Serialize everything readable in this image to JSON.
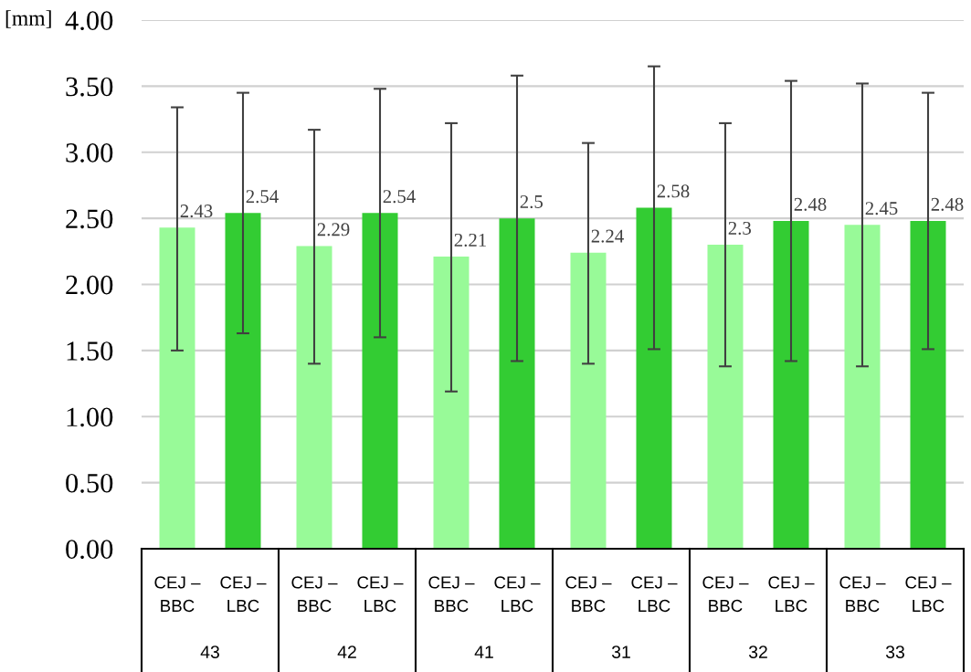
{
  "chart_data": {
    "type": "bar",
    "ylabel": "[mm]",
    "categories": [
      "43",
      "42",
      "41",
      "31",
      "32",
      "33"
    ],
    "series": [
      {
        "name": "CEJ –\nBBC",
        "color": "#98fa98",
        "values": [
          2.43,
          2.29,
          2.21,
          2.24,
          2.3,
          2.45
        ],
        "errors": [
          [
            1.5,
            3.34
          ],
          [
            1.4,
            3.17
          ],
          [
            1.19,
            3.22
          ],
          [
            1.4,
            3.07
          ],
          [
            1.38,
            3.22
          ],
          [
            1.38,
            3.52
          ]
        ]
      },
      {
        "name": "CEJ –\nLBC",
        "color": "#33cc33",
        "values": [
          2.54,
          2.54,
          2.5,
          2.58,
          2.48,
          2.48
        ],
        "errors": [
          [
            1.63,
            3.45
          ],
          [
            1.6,
            3.48
          ],
          [
            1.42,
            3.58
          ],
          [
            1.51,
            3.65
          ],
          [
            1.42,
            3.54
          ],
          [
            1.51,
            3.45
          ]
        ]
      }
    ],
    "ylim": [
      0,
      4
    ],
    "yticks": [
      {
        "value": 0,
        "label": "0.00"
      },
      {
        "value": 0.5,
        "label": "0.50"
      },
      {
        "value": 1,
        "label": "1.00"
      },
      {
        "value": 1.5,
        "label": "1.50"
      },
      {
        "value": 2,
        "label": "2.00"
      },
      {
        "value": 2.5,
        "label": "2.50"
      },
      {
        "value": 3,
        "label": "3.00"
      },
      {
        "value": 3.5,
        "label": "3.50"
      },
      {
        "value": 4,
        "label": "4.00"
      }
    ],
    "grid": "y",
    "data_labels": true,
    "legend": false
  }
}
